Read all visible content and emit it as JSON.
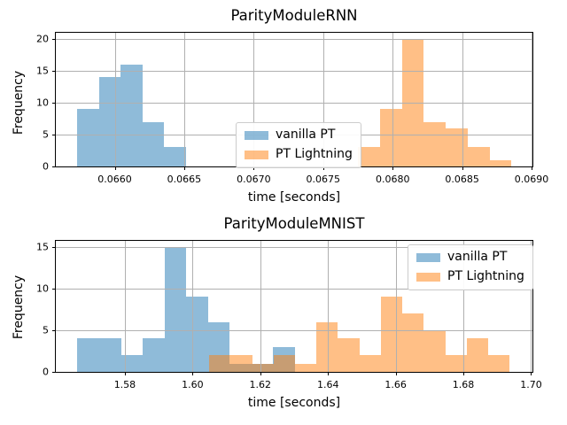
{
  "figure": {
    "background": "#ffffff",
    "grid_color": "#b0b0b0",
    "grid_over_bars": true
  },
  "chart_data": [
    {
      "type": "bar",
      "subtype": "histogram",
      "title": "ParityModuleRNN",
      "xlabel": "time [seconds]",
      "ylabel": "Frequency",
      "xlim": [
        0.065576,
        0.069006
      ],
      "ylim": [
        0,
        21
      ],
      "grid": true,
      "legend_loc": "center",
      "legend_entries": [
        "vanilla PT",
        "PT Lightning"
      ],
      "xticks": [
        {
          "v": 0.066,
          "label": "0.0660"
        },
        {
          "v": 0.0665,
          "label": "0.0665"
        },
        {
          "v": 0.067,
          "label": "0.0670"
        },
        {
          "v": 0.0675,
          "label": "0.0675"
        },
        {
          "v": 0.068,
          "label": "0.0680"
        },
        {
          "v": 0.0685,
          "label": "0.0685"
        },
        {
          "v": 0.069,
          "label": "0.0690"
        }
      ],
      "yticks": [
        {
          "v": 0,
          "label": "0"
        },
        {
          "v": 5,
          "label": "5"
        },
        {
          "v": 10,
          "label": "10"
        },
        {
          "v": 15,
          "label": "15"
        },
        {
          "v": 20,
          "label": "20"
        }
      ],
      "series": [
        {
          "name": "vanilla PT",
          "slug": "vanilla-pt",
          "color": "#1f77b4",
          "fill": "rgba(31,119,180,0.5)",
          "bin_start": 0.065731,
          "bin_width": 0.000156,
          "counts": [
            9,
            14,
            16,
            7,
            3
          ]
        },
        {
          "name": "PT Lightning",
          "slug": "pt-lightning",
          "color": "#ff7f0e",
          "fill": "rgba(255,127,14,0.5)",
          "bin_start": 0.067752,
          "bin_width": 0.0001575,
          "counts": [
            3,
            9,
            20,
            7,
            6,
            3,
            1
          ]
        }
      ]
    },
    {
      "type": "bar",
      "subtype": "histogram",
      "title": "ParityModuleMNIST",
      "xlabel": "time [seconds]",
      "ylabel": "Frequency",
      "xlim": [
        1.5596,
        1.7004
      ],
      "ylim": [
        0,
        15.75
      ],
      "grid": true,
      "legend_loc": "upper right",
      "legend_entries": [
        "vanilla PT",
        "PT Lightning"
      ],
      "xticks": [
        {
          "v": 1.58,
          "label": "1.58"
        },
        {
          "v": 1.6,
          "label": "1.60"
        },
        {
          "v": 1.62,
          "label": "1.62"
        },
        {
          "v": 1.64,
          "label": "1.64"
        },
        {
          "v": 1.66,
          "label": "1.66"
        },
        {
          "v": 1.68,
          "label": "1.68"
        },
        {
          "v": 1.7,
          "label": "1.70"
        }
      ],
      "yticks": [
        {
          "v": 0,
          "label": "0"
        },
        {
          "v": 5,
          "label": "5"
        },
        {
          "v": 10,
          "label": "10"
        },
        {
          "v": 15,
          "label": "15"
        }
      ],
      "series": [
        {
          "name": "vanilla PT",
          "slug": "vanilla-pt",
          "color": "#1f77b4",
          "fill": "rgba(31,119,180,0.5)",
          "bin_start": 1.566,
          "bin_width": 0.00642,
          "counts": [
            4,
            4,
            2,
            4,
            15,
            9,
            6,
            1,
            1,
            3
          ]
        },
        {
          "name": "PT Lightning",
          "slug": "pt-lightning",
          "color": "#ff7f0e",
          "fill": "rgba(255,127,14,0.5)",
          "bin_start": 1.6049,
          "bin_width": 0.00634,
          "counts": [
            2,
            2,
            1,
            2,
            1,
            6,
            4,
            2,
            9,
            7,
            5,
            2,
            4,
            2
          ]
        }
      ]
    }
  ]
}
